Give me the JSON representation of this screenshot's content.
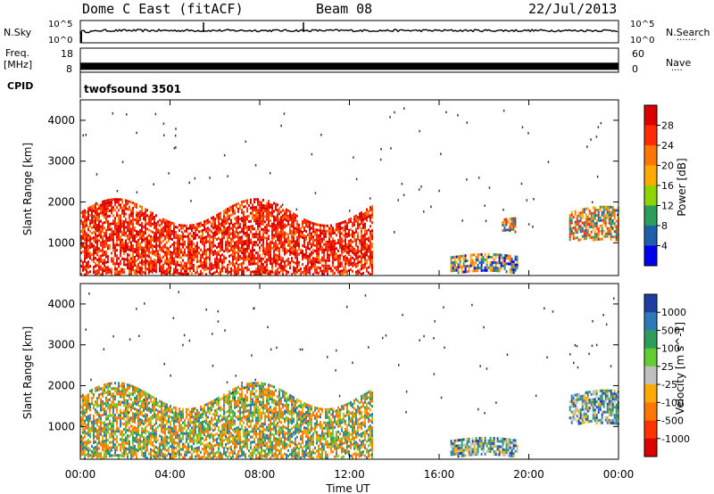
{
  "header": {
    "station": "Dome C East (fitACF)",
    "beam": "Beam 08",
    "date": "22/Jul/2013"
  },
  "nsky_panel": {
    "left_label": "N.Sky",
    "left_ticks": [
      "10^5",
      "10^0"
    ],
    "right_ticks": [
      "10^5",
      "10^0"
    ],
    "right_label": "N.Search",
    "right_label_dots": "·······"
  },
  "freq_panel": {
    "left_label_line1": "Freq.",
    "left_label_line2": "[MHz]",
    "left_ticks": [
      "18",
      "8"
    ],
    "right_ticks": [
      "60",
      "0"
    ],
    "right_label": "Nave",
    "right_label_dots": "····",
    "freq_level_mhz": 10.5
  },
  "cpid": {
    "label": "CPID",
    "program": "twofsound 3501"
  },
  "chart_data": [
    {
      "type": "heatmap",
      "name_label": "Power [dB]",
      "ylabel": "Slant Range [km]",
      "xlabel": "",
      "x_range_hours": [
        0,
        24
      ],
      "y_range_km": [
        200,
        4500
      ],
      "y_ticks": [
        1000,
        2000,
        3000,
        4000
      ],
      "colorbar": {
        "labels": [
          "28",
          "24",
          "20",
          "16",
          "12",
          "8",
          "4"
        ],
        "colors": [
          "#d90000",
          "#ff2a00",
          "#ff7700",
          "#ffaa00",
          "#8fd400",
          "#2e9c5a",
          "#1f5ea8",
          "#0000ee"
        ]
      },
      "echo_regions": [
        {
          "t0": 0.0,
          "t1": 13.0,
          "r0": 250,
          "r1": 2300,
          "level": "high"
        },
        {
          "t0": 16.5,
          "t1": 19.5,
          "r0": 300,
          "r1": 800,
          "level": "mixed"
        },
        {
          "t0": 18.8,
          "t1": 19.4,
          "r0": 1300,
          "r1": 1700,
          "level": "medium"
        },
        {
          "t0": 21.8,
          "t1": 24.0,
          "r0": 1100,
          "r1": 2000,
          "level": "medium"
        }
      ]
    },
    {
      "type": "heatmap",
      "name_label": "Velocity [m s^-1]",
      "ylabel": "Slant Range [km]",
      "xlabel": "Time UT",
      "x_range_hours": [
        0,
        24
      ],
      "x_tick_labels": [
        "00:00",
        "04:00",
        "08:00",
        "12:00",
        "16:00",
        "20:00",
        "00:00"
      ],
      "y_range_km": [
        200,
        4500
      ],
      "y_ticks": [
        1000,
        2000,
        3000,
        4000
      ],
      "colorbar": {
        "labels": [
          "1000",
          "500",
          "100",
          "25",
          "-25",
          "-100",
          "-500",
          "-1000"
        ],
        "colors": [
          "#1f3fa0",
          "#2e7ab8",
          "#2e9c5a",
          "#66cc33",
          "#c0c0c0",
          "#ffaa00",
          "#ff7700",
          "#ff3300",
          "#dd0000"
        ]
      },
      "echo_regions": [
        {
          "t0": 0.0,
          "t1": 13.0,
          "r0": 250,
          "r1": 2300,
          "level": "negative"
        },
        {
          "t0": 16.5,
          "t1": 19.5,
          "r0": 300,
          "r1": 800,
          "level": "mixed"
        },
        {
          "t0": 21.8,
          "t1": 24.0,
          "r0": 1100,
          "r1": 2000,
          "level": "mixed"
        }
      ]
    }
  ]
}
